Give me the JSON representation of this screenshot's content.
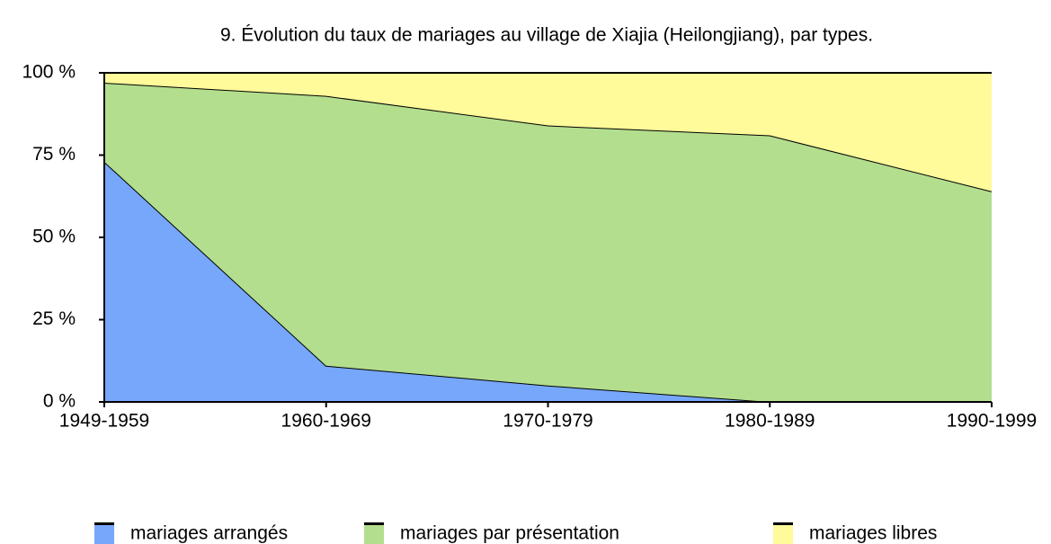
{
  "chart_data": {
    "type": "stacked_area",
    "title": "9. Évolution du taux de mariages au village de Xiajia (Heilongjiang), par types.",
    "categories": [
      "1949-1959",
      "1960-1969",
      "1970-1979",
      "1980-1989",
      "1990-1999"
    ],
    "series": [
      {
        "name": "mariages arrangés",
        "color": "#76a7fa",
        "values": [
          73,
          11,
          5,
          0,
          0
        ]
      },
      {
        "name": "mariages par présentation",
        "color": "#b3de8e",
        "values": [
          24,
          82,
          79,
          81,
          64
        ]
      },
      {
        "name": "mariages libres",
        "color": "#fffa9a",
        "values": [
          3,
          7,
          16,
          19,
          36
        ]
      }
    ],
    "ylim": [
      0,
      100
    ],
    "yticks": [
      {
        "value": 0,
        "label": "0 %"
      },
      {
        "value": 25,
        "label": "25 %"
      },
      {
        "value": 50,
        "label": "50 %"
      },
      {
        "value": 75,
        "label": "75 %"
      },
      {
        "value": 100,
        "label": "100 %"
      }
    ],
    "legend": "bottom"
  }
}
